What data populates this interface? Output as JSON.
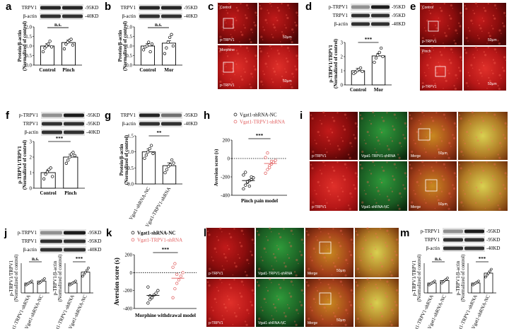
{
  "panels": {
    "a": {
      "letter": "a",
      "blots": [
        "TRPV1",
        "β-actin"
      ],
      "kd": [
        "-95KD",
        "-40KD"
      ],
      "ylabel": "Protein/β-actin",
      "ylabel2": "(Normalized of control)",
      "xlabels": [
        "Control",
        "Pinch"
      ],
      "sig": "n.s.",
      "yticks": [
        "0.0",
        "0.5",
        "1.0",
        "1.5",
        "2.0"
      ]
    },
    "b": {
      "letter": "b",
      "blots": [
        "TRPV1",
        "β-actin"
      ],
      "kd": [
        "-95KD",
        "-40KD"
      ],
      "ylabel": "Protein/β-actin",
      "ylabel2": "(Normalized of control)",
      "xlabels": [
        "Control",
        "Mor"
      ],
      "sig": "n.s.",
      "yticks": [
        "0.0",
        "0.5",
        "1.0",
        "1.5",
        "2.0"
      ]
    },
    "c": {
      "letter": "c",
      "labels": [
        "Control",
        "p-TRPV1",
        "Morphine",
        "p-TRPV1"
      ],
      "scale": "50μm"
    },
    "d": {
      "letter": "d",
      "blots": [
        "p-TRPV1",
        "TRPV1",
        "β-actin"
      ],
      "kd": [
        "-95KD",
        "-95KD",
        "-40KD"
      ],
      "ylabel": "p-TRPV1/TRPV1",
      "ylabel2": "(Normalized of control)",
      "xlabels": [
        "Control",
        "Mor"
      ],
      "sig": "***",
      "yticks": [
        "0",
        "1",
        "2",
        "3"
      ]
    },
    "e": {
      "letter": "e",
      "labels": [
        "Control",
        "p-TRPV1",
        "Pinch",
        "p-TRPV1"
      ],
      "scale": "50μm"
    },
    "f": {
      "letter": "f",
      "blots": [
        "p-TRPV1",
        "TRPV1",
        "β-actin"
      ],
      "kd": [
        "-95KD",
        "-95KD",
        "-40KD"
      ],
      "ylabel": "p-TRPV1/TRPV1",
      "ylabel2": "(Normalized of control)",
      "xlabels": [
        "Control",
        "Pinch"
      ],
      "sig": "***",
      "yticks": [
        "0",
        "1",
        "2",
        "3"
      ]
    },
    "g": {
      "letter": "g",
      "blots": [
        "TRPV1",
        "β-actin"
      ],
      "kd": [
        "-95KD",
        "-40KD"
      ],
      "ylabel": "Protein/β-actin",
      "ylabel2": "(Normalized of control)",
      "xlabels": [
        "Vgat1-shRNA-NC",
        "Vgat1-TRPV1-shRNA"
      ],
      "sig": "**",
      "yticks": [
        "0.0",
        "0.5",
        "1.0",
        "1.5"
      ]
    },
    "h": {
      "letter": "h",
      "legend": [
        "Vgat1-shRNA-NC",
        "Vgat1-TRPV1-shRNA"
      ],
      "ylabel": "Aversion score (s)",
      "xlabel": "Pinch pain model",
      "sig": "***",
      "yticks": [
        "-400",
        "-200",
        "0",
        "200"
      ]
    },
    "i": {
      "letter": "i",
      "labels": [
        "p-TRPV1",
        "Vgat1-TRPV1-shRNA",
        "Merge",
        "p-TRPV1",
        "Vgat1-shRNA-NC",
        "Merge"
      ],
      "scale": "50μm"
    },
    "j": {
      "letter": "j",
      "blots": [
        "p-TRPV1",
        "TRPV1",
        "β-actin"
      ],
      "kd": [
        "-95KD",
        "-95KD",
        "-40KD"
      ],
      "ylabel_left": "p-TRPV1/TRPV1",
      "ylabel_right": "p-TRPV1/β-actin",
      "ylabel2": "(Normalized of control)",
      "xlabels": [
        "Vgat1-TRPV1-shRNA",
        "Vgat1-shRNA-NC"
      ],
      "sig_left": "n.s.",
      "sig_right": "***"
    },
    "k": {
      "letter": "k",
      "legend": [
        "Vgat1-shRNA-NC",
        "Vgat1-TRPV1-shRNA"
      ],
      "ylabel": "Aversion score (s)",
      "xlabel": "Morphine withdrawal  model",
      "sig": "***",
      "yticks": [
        "-400",
        "-200",
        "0",
        "200"
      ]
    },
    "l": {
      "letter": "l",
      "labels": [
        "p-TRPV1",
        "Vgat1-TRPV1-shRNA",
        "Merge",
        "p-TRPV1",
        "Vgat1-shRNA-NC",
        "Merge"
      ],
      "scale": "50μm"
    },
    "m": {
      "letter": "m",
      "blots": [
        "p-TRPV1",
        "TRPV1",
        "β-actin"
      ],
      "kd": [
        "-95KD",
        "-95KD",
        "-40KD"
      ],
      "ylabel_left": "p-TRPV1/TRPV1",
      "ylabel_right": "p-TRPV1/β-actin",
      "ylabel2": "(Normalized of control)",
      "xlabels": [
        "Vgat1-TRPV1-shRNA",
        "Vgat1-shRNA-NC"
      ],
      "sig_left": "n.s.",
      "sig_right": "***"
    }
  },
  "chart_data": [
    {
      "panel": "a",
      "type": "bar",
      "categories": [
        "Control",
        "Pinch"
      ],
      "values": [
        1.0,
        1.18
      ],
      "ylim": [
        0,
        2
      ],
      "points": [
        [
          0.7,
          0.9,
          1.0,
          1.1,
          1.25,
          0.95
        ],
        [
          0.85,
          1.1,
          1.2,
          1.3,
          1.35,
          1.05
        ]
      ]
    },
    {
      "panel": "b",
      "type": "bar",
      "categories": [
        "Control",
        "Mor"
      ],
      "values": [
        1.0,
        1.15
      ],
      "ylim": [
        0,
        2
      ],
      "points": [
        [
          0.8,
          0.95,
          1.0,
          1.2,
          0.7,
          1.1
        ],
        [
          0.6,
          0.9,
          1.2,
          1.45,
          1.6,
          1.0
        ]
      ]
    },
    {
      "panel": "d",
      "type": "bar",
      "categories": [
        "Control",
        "Mor"
      ],
      "values": [
        1.0,
        2.05
      ],
      "ylim": [
        0,
        3
      ],
      "points": [
        [
          0.8,
          0.9,
          1.0,
          1.1,
          1.2,
          0.95
        ],
        [
          1.6,
          1.9,
          2.1,
          2.3,
          2.6,
          2.0
        ]
      ]
    },
    {
      "panel": "f",
      "type": "bar",
      "categories": [
        "Control",
        "Pinch"
      ],
      "values": [
        1.0,
        2.0
      ],
      "ylim": [
        0,
        3
      ],
      "points": [
        [
          0.6,
          0.9,
          1.05,
          1.2,
          1.3,
          0.75
        ],
        [
          1.6,
          1.8,
          2.0,
          2.2,
          2.3,
          2.1
        ]
      ]
    },
    {
      "panel": "g",
      "type": "bar",
      "categories": [
        "Vgat1-shRNA-NC",
        "Vgat1-TRPV1-shRNA"
      ],
      "values": [
        1.0,
        0.57
      ],
      "ylim": [
        0,
        1.5
      ],
      "points": [
        [
          0.8,
          0.9,
          1.0,
          1.1,
          1.2,
          0.95
        ],
        [
          0.35,
          0.45,
          0.55,
          0.6,
          0.75,
          0.65
        ]
      ]
    },
    {
      "panel": "h",
      "type": "scatter",
      "series": [
        {
          "name": "Vgat1-shRNA-NC",
          "values": [
            -330,
            -290,
            -260,
            -240,
            -230,
            -210,
            -180,
            -150,
            -250,
            -300,
            -200
          ]
        },
        {
          "name": "Vgat1-TRPV1-shRNA",
          "values": [
            -160,
            -120,
            -80,
            -60,
            -40,
            -20,
            10,
            60,
            -100,
            -30
          ]
        }
      ],
      "ylim": [
        -400,
        200
      ]
    },
    {
      "panel": "j",
      "type": "bar",
      "categories": [
        "Vgat1-TRPV1-shRNA",
        "Vgat1-shRNA-NC"
      ],
      "series": [
        {
          "name": "p-TRPV1/TRPV1",
          "values": [
            1.0,
            1.2
          ]
        },
        {
          "name": "p-TRPV1/β-actin",
          "values": [
            1.0,
            2.1
          ]
        }
      ]
    },
    {
      "panel": "k",
      "type": "scatter",
      "series": [
        {
          "name": "Vgat1-shRNA-NC",
          "values": [
            -340,
            -300,
            -270,
            -250,
            -230,
            -200,
            -160,
            -260,
            -280
          ]
        },
        {
          "name": "Vgat1-TRPV1-shRNA",
          "values": [
            -280,
            -180,
            -120,
            -80,
            -40,
            0,
            60,
            100,
            -20
          ]
        }
      ],
      "ylim": [
        -400,
        200
      ]
    },
    {
      "panel": "m",
      "type": "bar",
      "categories": [
        "Vgat1-TRPV1-shRNA",
        "Vgat1-shRNA-NC"
      ],
      "series": [
        {
          "name": "p-TRPV1/TRPV1",
          "values": [
            1.0,
            1.25
          ]
        },
        {
          "name": "p-TRPV1/β-actin",
          "values": [
            1.0,
            2.0
          ]
        }
      ]
    }
  ]
}
